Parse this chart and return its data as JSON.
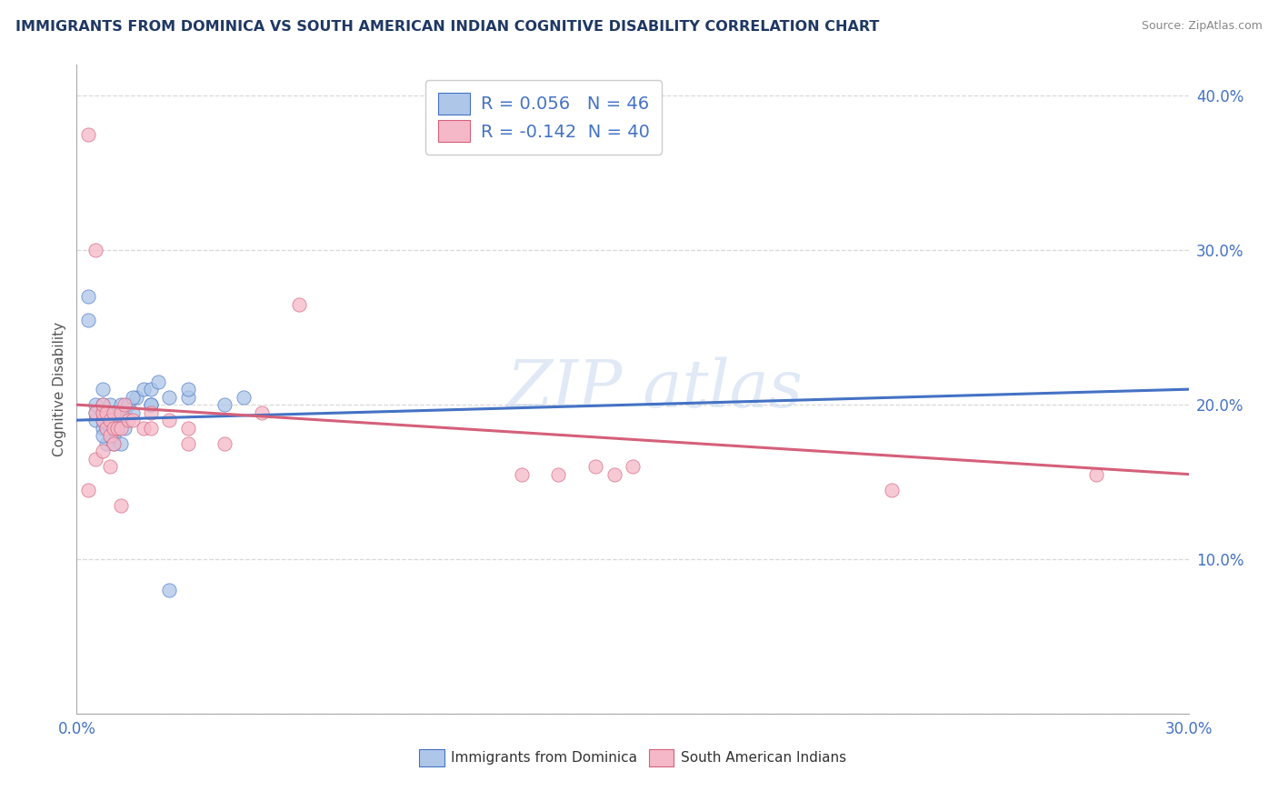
{
  "title": "IMMIGRANTS FROM DOMINICA VS SOUTH AMERICAN INDIAN COGNITIVE DISABILITY CORRELATION CHART",
  "source": "Source: ZipAtlas.com",
  "ylabel": "Cognitive Disability",
  "legend1_label": "R = 0.056   N = 46",
  "legend2_label": "R = -0.142  N = 40",
  "legend_bottom": "Immigrants from Dominica",
  "legend_bottom2": "South American Indians",
  "blue_color": "#aec6e8",
  "pink_color": "#f5b8c8",
  "blue_line_color": "#4472c4",
  "pink_line_color": "#d4607a",
  "title_color": "#1f3864",
  "xlim": [
    0.0,
    0.3
  ],
  "ylim": [
    0.0,
    0.42
  ],
  "x_tick_positions": [
    0.0,
    0.05,
    0.1,
    0.15,
    0.2,
    0.25,
    0.3
  ],
  "y_tick_positions": [
    0.0,
    0.1,
    0.2,
    0.3,
    0.4
  ],
  "grid_color": "#d8d8d8",
  "background_color": "#ffffff",
  "blue_scatter_x": [
    0.003,
    0.003,
    0.005,
    0.005,
    0.005,
    0.007,
    0.007,
    0.007,
    0.007,
    0.007,
    0.008,
    0.008,
    0.008,
    0.009,
    0.009,
    0.009,
    0.009,
    0.01,
    0.01,
    0.01,
    0.01,
    0.01,
    0.011,
    0.011,
    0.012,
    0.012,
    0.013,
    0.013,
    0.014,
    0.015,
    0.016,
    0.018,
    0.02,
    0.02,
    0.022,
    0.025,
    0.03,
    0.03,
    0.04,
    0.045,
    0.007,
    0.01,
    0.012,
    0.015,
    0.02,
    0.025
  ],
  "blue_scatter_y": [
    0.255,
    0.27,
    0.19,
    0.195,
    0.2,
    0.185,
    0.19,
    0.195,
    0.2,
    0.21,
    0.175,
    0.185,
    0.195,
    0.18,
    0.185,
    0.19,
    0.2,
    0.175,
    0.18,
    0.185,
    0.19,
    0.195,
    0.185,
    0.195,
    0.19,
    0.2,
    0.185,
    0.195,
    0.2,
    0.195,
    0.205,
    0.21,
    0.2,
    0.21,
    0.215,
    0.205,
    0.205,
    0.21,
    0.2,
    0.205,
    0.18,
    0.195,
    0.175,
    0.205,
    0.2,
    0.08
  ],
  "pink_scatter_x": [
    0.003,
    0.005,
    0.005,
    0.007,
    0.007,
    0.007,
    0.008,
    0.008,
    0.009,
    0.009,
    0.01,
    0.01,
    0.01,
    0.011,
    0.012,
    0.012,
    0.013,
    0.014,
    0.015,
    0.018,
    0.02,
    0.02,
    0.025,
    0.03,
    0.03,
    0.04,
    0.05,
    0.06,
    0.12,
    0.13,
    0.14,
    0.145,
    0.15,
    0.22,
    0.275,
    0.003,
    0.005,
    0.007,
    0.009,
    0.012
  ],
  "pink_scatter_y": [
    0.375,
    0.3,
    0.195,
    0.19,
    0.195,
    0.2,
    0.185,
    0.195,
    0.18,
    0.19,
    0.175,
    0.185,
    0.195,
    0.185,
    0.185,
    0.195,
    0.2,
    0.19,
    0.19,
    0.185,
    0.185,
    0.195,
    0.19,
    0.175,
    0.185,
    0.175,
    0.195,
    0.265,
    0.155,
    0.155,
    0.16,
    0.155,
    0.16,
    0.145,
    0.155,
    0.145,
    0.165,
    0.17,
    0.16,
    0.135
  ],
  "blue_trend_x": [
    0.0,
    0.3
  ],
  "blue_trend_y": [
    0.19,
    0.21
  ],
  "pink_trend_x": [
    0.0,
    0.3
  ],
  "pink_trend_y": [
    0.2,
    0.155
  ]
}
